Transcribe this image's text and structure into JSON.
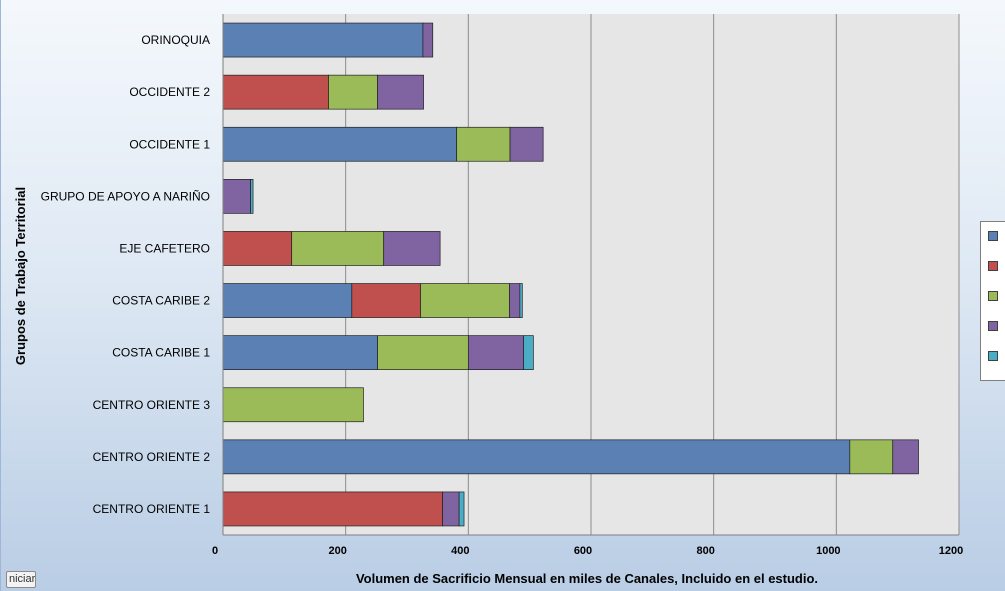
{
  "chart_data": {
    "type": "bar",
    "orientation": "horizontal",
    "stacked": true,
    "title": "",
    "xlabel": "Volumen de Sacrificio Mensual en miles de Canales, Incluido en el estudio.",
    "ylabel": "Grupos de Trabajo Territorial",
    "xlim": [
      0,
      1200
    ],
    "xticks": [
      0,
      200,
      400,
      600,
      800,
      1000,
      1200
    ],
    "grid": true,
    "legend_position": "right",
    "categories": [
      "CENTRO ORIENTE 1",
      "CENTRO ORIENTE 2",
      "CENTRO ORIENTE 3",
      "COSTA CARIBE 1",
      "COSTA CARIBE 2",
      "EJE CAFETERO",
      "GRUPO DE APOYO A NARIÑO",
      "OCCIDENTE 1",
      "OCCIDENTE 2",
      "ORINOQUIA"
    ],
    "series": [
      {
        "color": "#5b80b4",
        "values": [
          0,
          1022,
          0,
          252,
          210,
          0,
          0,
          381,
          0,
          326
        ]
      },
      {
        "color": "#c0504d",
        "values": [
          358,
          0,
          0,
          0,
          112,
          112,
          0,
          0,
          172,
          0
        ]
      },
      {
        "color": "#9bbb59",
        "values": [
          0,
          70,
          229,
          148,
          145,
          150,
          0,
          87,
          80,
          0
        ]
      },
      {
        "color": "#8064a2",
        "values": [
          27,
          42,
          0,
          90,
          17,
          92,
          45,
          54,
          75,
          16
        ]
      },
      {
        "color": "#4bacc6",
        "values": [
          8,
          0,
          0,
          16,
          4,
          0,
          4,
          0,
          0,
          0
        ]
      }
    ],
    "legend_labels": [
      "",
      "",
      "",
      "",
      ""
    ]
  },
  "ui": {
    "iniciar_label": "niciar"
  }
}
